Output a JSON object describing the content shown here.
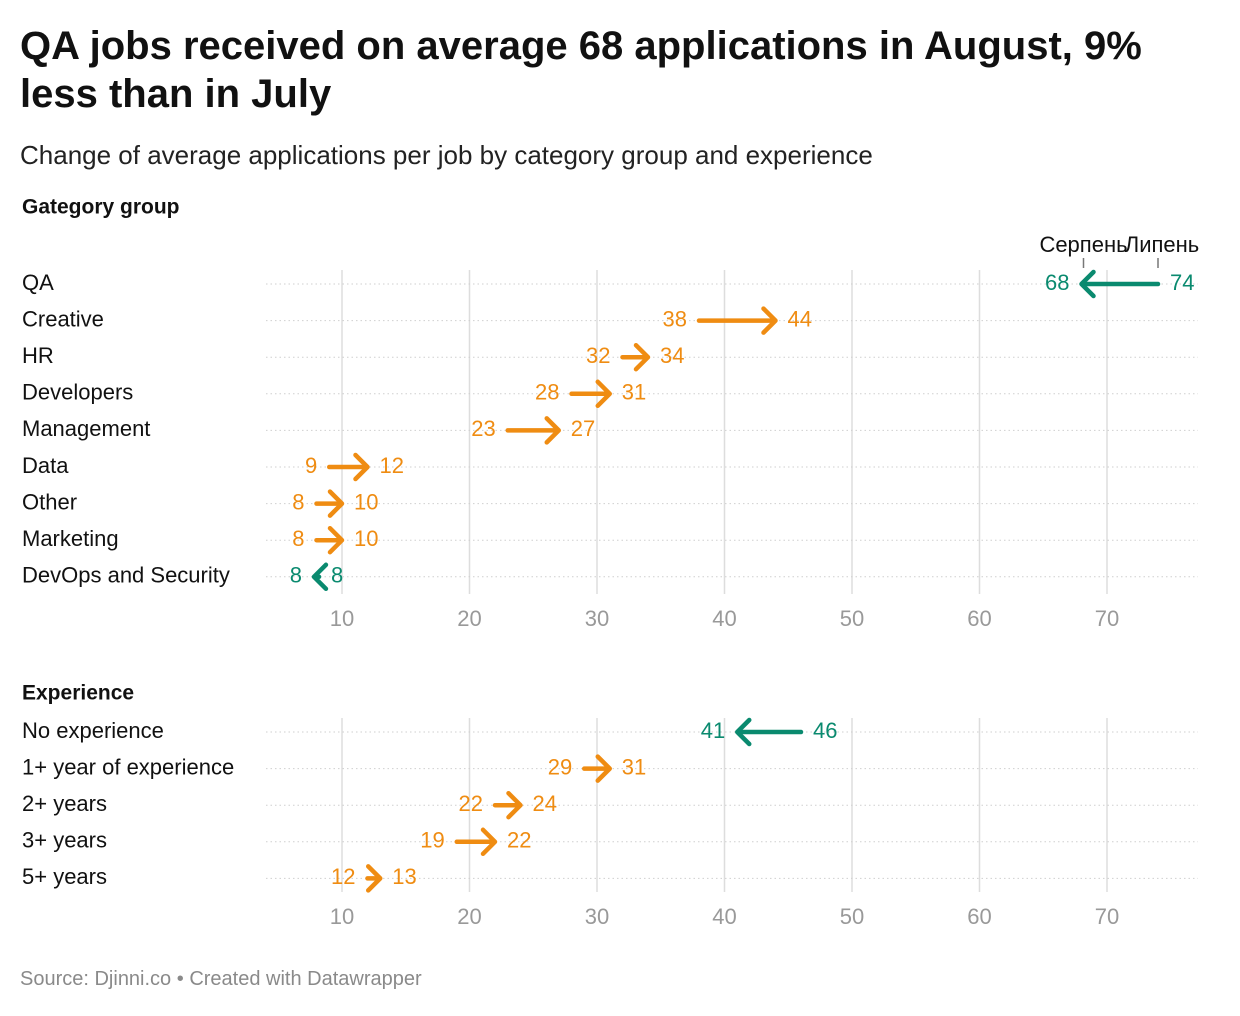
{
  "title": "QA jobs received on average 68 applications in August, 9% less than in July",
  "subtitle": "Change of average applications per job by category group and experience",
  "footer": {
    "source": "Source: Djinni.co",
    "separator": "•",
    "credit": "Created with Datawrapper"
  },
  "colors": {
    "increase": "#ef8c12",
    "decrease": "#0a8a6f",
    "grid": "#dddddd",
    "tick": "#999999"
  },
  "chart_data": [
    {
      "type": "arrow",
      "section_title": "Gategory group",
      "legend": {
        "from_label": "Липень",
        "to_label": "Серпень"
      },
      "xlim": [
        4,
        77
      ],
      "x_ticks": [
        10,
        20,
        30,
        40,
        50,
        60,
        70
      ],
      "rows": [
        {
          "label": "QA",
          "july": 74,
          "august": 68,
          "from_text": "74",
          "to_text": "68"
        },
        {
          "label": "Creative",
          "july": 38,
          "august": 44,
          "from_text": "38",
          "to_text": "44"
        },
        {
          "label": "HR",
          "july": 32,
          "august": 34,
          "from_text": "32",
          "to_text": "34"
        },
        {
          "label": "Developers",
          "july": 28,
          "august": 31,
          "from_text": "28",
          "to_text": "31"
        },
        {
          "label": "Management",
          "july": 23,
          "august": 27,
          "from_text": "23",
          "to_text": "27"
        },
        {
          "label": "Data",
          "july": 9,
          "august": 12,
          "from_text": "9",
          "to_text": "12"
        },
        {
          "label": "Other",
          "july": 8,
          "august": 10,
          "from_text": "8",
          "to_text": "10"
        },
        {
          "label": "Marketing",
          "july": 8,
          "august": 10,
          "from_text": "8",
          "to_text": "10"
        },
        {
          "label": "DevOps and Security",
          "july": 8.2,
          "august": 7.8,
          "from_text": "8",
          "to_text": "8"
        }
      ]
    },
    {
      "type": "arrow",
      "section_title": "Experience",
      "xlim": [
        4,
        77
      ],
      "x_ticks": [
        10,
        20,
        30,
        40,
        50,
        60,
        70
      ],
      "rows": [
        {
          "label": "No experience",
          "july": 46,
          "august": 41,
          "from_text": "46",
          "to_text": "41"
        },
        {
          "label": "1+ year of experience",
          "july": 29,
          "august": 31,
          "from_text": "29",
          "to_text": "31"
        },
        {
          "label": "2+ years",
          "july": 22,
          "august": 24,
          "from_text": "22",
          "to_text": "24"
        },
        {
          "label": "3+ years",
          "july": 19,
          "august": 22,
          "from_text": "19",
          "to_text": "22"
        },
        {
          "label": "5+ years",
          "july": 12,
          "august": 13,
          "from_text": "12",
          "to_text": "13"
        }
      ]
    }
  ]
}
